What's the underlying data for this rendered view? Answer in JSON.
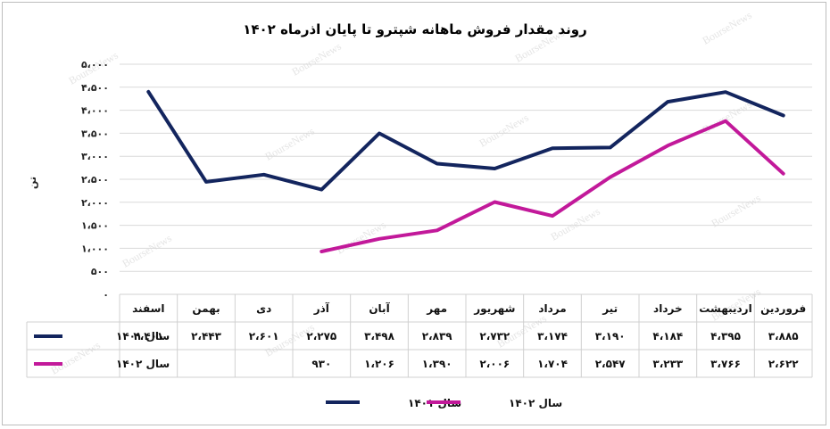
{
  "chart_data": {
    "type": "line",
    "title": "روند مقدار فروش ماهانه شپترو تا پایان اذرماه ۱۴۰۲",
    "ylabel": "تن",
    "ylim": [
      0,
      5000
    ],
    "yticks": [
      0,
      500,
      1000,
      1500,
      2000,
      2500,
      3000,
      3500,
      4000,
      4500,
      5000
    ],
    "ytick_labels": [
      "۰",
      "۵۰۰",
      "۱،۰۰۰",
      "۱،۵۰۰",
      "۲،۰۰۰",
      "۲،۵۰۰",
      "۳،۰۰۰",
      "۳،۵۰۰",
      "۴،۰۰۰",
      "۴،۵۰۰",
      "۵،۰۰۰"
    ],
    "grid": true,
    "legend_position": "bottom",
    "categories": [
      "فروردین",
      "اردیبهشت",
      "خرداد",
      "تیر",
      "مرداد",
      "شهریور",
      "مهر",
      "آبان",
      "آذر",
      "دی",
      "بهمن",
      "اسفند"
    ],
    "series": [
      {
        "name": "سال ۱۴۰۱",
        "color": "#13255e",
        "values": [
          3885,
          4395,
          4184,
          3190,
          3174,
          2732,
          2839,
          3498,
          2275,
          2601,
          2443,
          4401
        ],
        "labels": [
          "۳،۸۸۵",
          "۴،۳۹۵",
          "۴،۱۸۴",
          "۳،۱۹۰",
          "۳،۱۷۴",
          "۲،۷۳۲",
          "۲،۸۳۹",
          "۳،۴۹۸",
          "۲،۲۷۵",
          "۲،۶۰۱",
          "۲،۴۴۳",
          "۴،۴۰۱"
        ]
      },
      {
        "name": "سال ۱۴۰۲",
        "color": "#c2199a",
        "values": [
          2622,
          3766,
          3233,
          2547,
          1704,
          2006,
          1390,
          1206,
          930,
          null,
          null,
          null
        ],
        "labels": [
          "۲،۶۲۲",
          "۳،۷۶۶",
          "۳،۲۳۳",
          "۲،۵۴۷",
          "۱،۷۰۴",
          "۲،۰۰۶",
          "۱،۳۹۰",
          "۱،۲۰۶",
          "۹۳۰",
          "",
          "",
          ""
        ]
      }
    ],
    "watermark": "BourseNews"
  }
}
